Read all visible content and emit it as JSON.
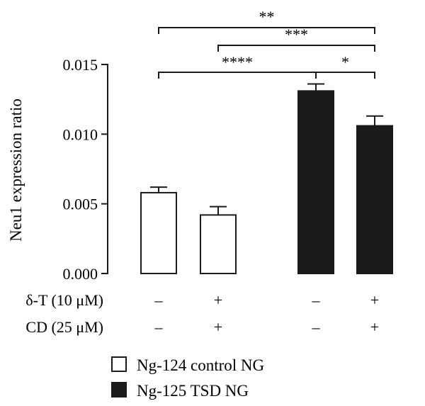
{
  "chart_data": {
    "type": "bar",
    "ylabel": "Neu1 expression ratio",
    "ylim": [
      0,
      0.015
    ],
    "yticks": [
      "0.000",
      "0.005",
      "0.010",
      "0.015"
    ],
    "ytick_values": [
      0,
      0.005,
      0.01,
      0.015
    ],
    "categories": [
      "Ng-124 control NG − −",
      "Ng-124 control NG + +",
      "Ng-125 TSD NG − −",
      "Ng-125 TSD NG + +"
    ],
    "values": [
      0.0058,
      0.0042,
      0.0131,
      0.0106
    ],
    "errors": [
      0.0004,
      0.0006,
      0.0005,
      0.0007
    ],
    "bar_colors": [
      "#ffffff",
      "#ffffff",
      "#1a1a1a",
      "#1a1a1a"
    ],
    "conditions": [
      {
        "label": "δ-T (10 μM)",
        "signs": [
          "–",
          "+",
          "–",
          "+"
        ]
      },
      {
        "label": "CD (25 μM)",
        "signs": [
          "–",
          "+",
          "–",
          "+"
        ]
      }
    ],
    "significance": [
      {
        "from": 0,
        "to": 3,
        "stars": "**"
      },
      {
        "from": 1,
        "to": 3,
        "stars": "***"
      },
      {
        "from": 0,
        "to": 2,
        "stars": "****"
      },
      {
        "from": 2,
        "to": 3,
        "stars": "*"
      }
    ],
    "legend": [
      {
        "label": "Ng-124 control NG",
        "color": "#ffffff"
      },
      {
        "label": "Ng-125 TSD NG",
        "color": "#1a1a1a"
      }
    ]
  }
}
